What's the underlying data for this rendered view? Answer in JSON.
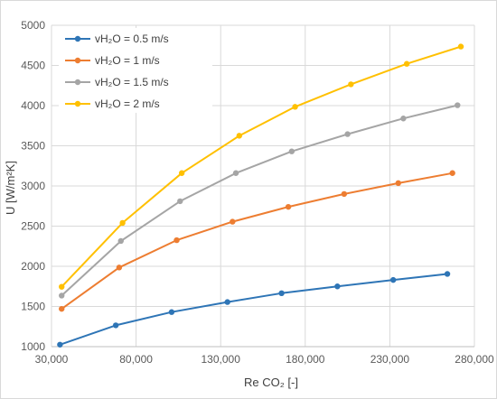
{
  "chart_data": {
    "type": "line",
    "xlabel": "Re CO₂ [-]",
    "ylabel": "U [W/m²K]",
    "xlim": [
      30000,
      280000
    ],
    "ylim": [
      1000,
      5000
    ],
    "x_ticks": [
      "30,000",
      "80,000",
      "130,000",
      "180,000",
      "230,000",
      "280,000"
    ],
    "y_ticks": [
      "1000",
      "1500",
      "2000",
      "2500",
      "3000",
      "3500",
      "4000",
      "4500",
      "5000"
    ],
    "grid": true,
    "legend_position": "top-left",
    "series": [
      {
        "name": "vH₂O = 0.5 m/s",
        "color": "#2E75B6",
        "x": [
          35000,
          68000,
          101000,
          134000,
          166000,
          199000,
          232000,
          264000
        ],
        "y": [
          1025,
          1265,
          1430,
          1555,
          1665,
          1750,
          1830,
          1905
        ]
      },
      {
        "name": "vH₂O = 1 m/s",
        "color": "#ED7D31",
        "x": [
          36000,
          70000,
          104000,
          137000,
          170000,
          203000,
          235000,
          267000
        ],
        "y": [
          1470,
          1985,
          2325,
          2555,
          2740,
          2900,
          3035,
          3160
        ]
      },
      {
        "name": "vH₂O = 1.5 m/s",
        "color": "#A5A5A5",
        "x": [
          36000,
          71000,
          106000,
          139000,
          172000,
          205000,
          238000,
          270000
        ],
        "y": [
          1635,
          2315,
          2810,
          3160,
          3430,
          3645,
          3840,
          4005
        ]
      },
      {
        "name": "vH₂O = 2 m/s",
        "color": "#FFC000",
        "x": [
          36000,
          72000,
          107000,
          141000,
          174000,
          207000,
          240000,
          272000
        ],
        "y": [
          1745,
          2540,
          3160,
          3625,
          3985,
          4265,
          4520,
          4735
        ]
      }
    ]
  }
}
